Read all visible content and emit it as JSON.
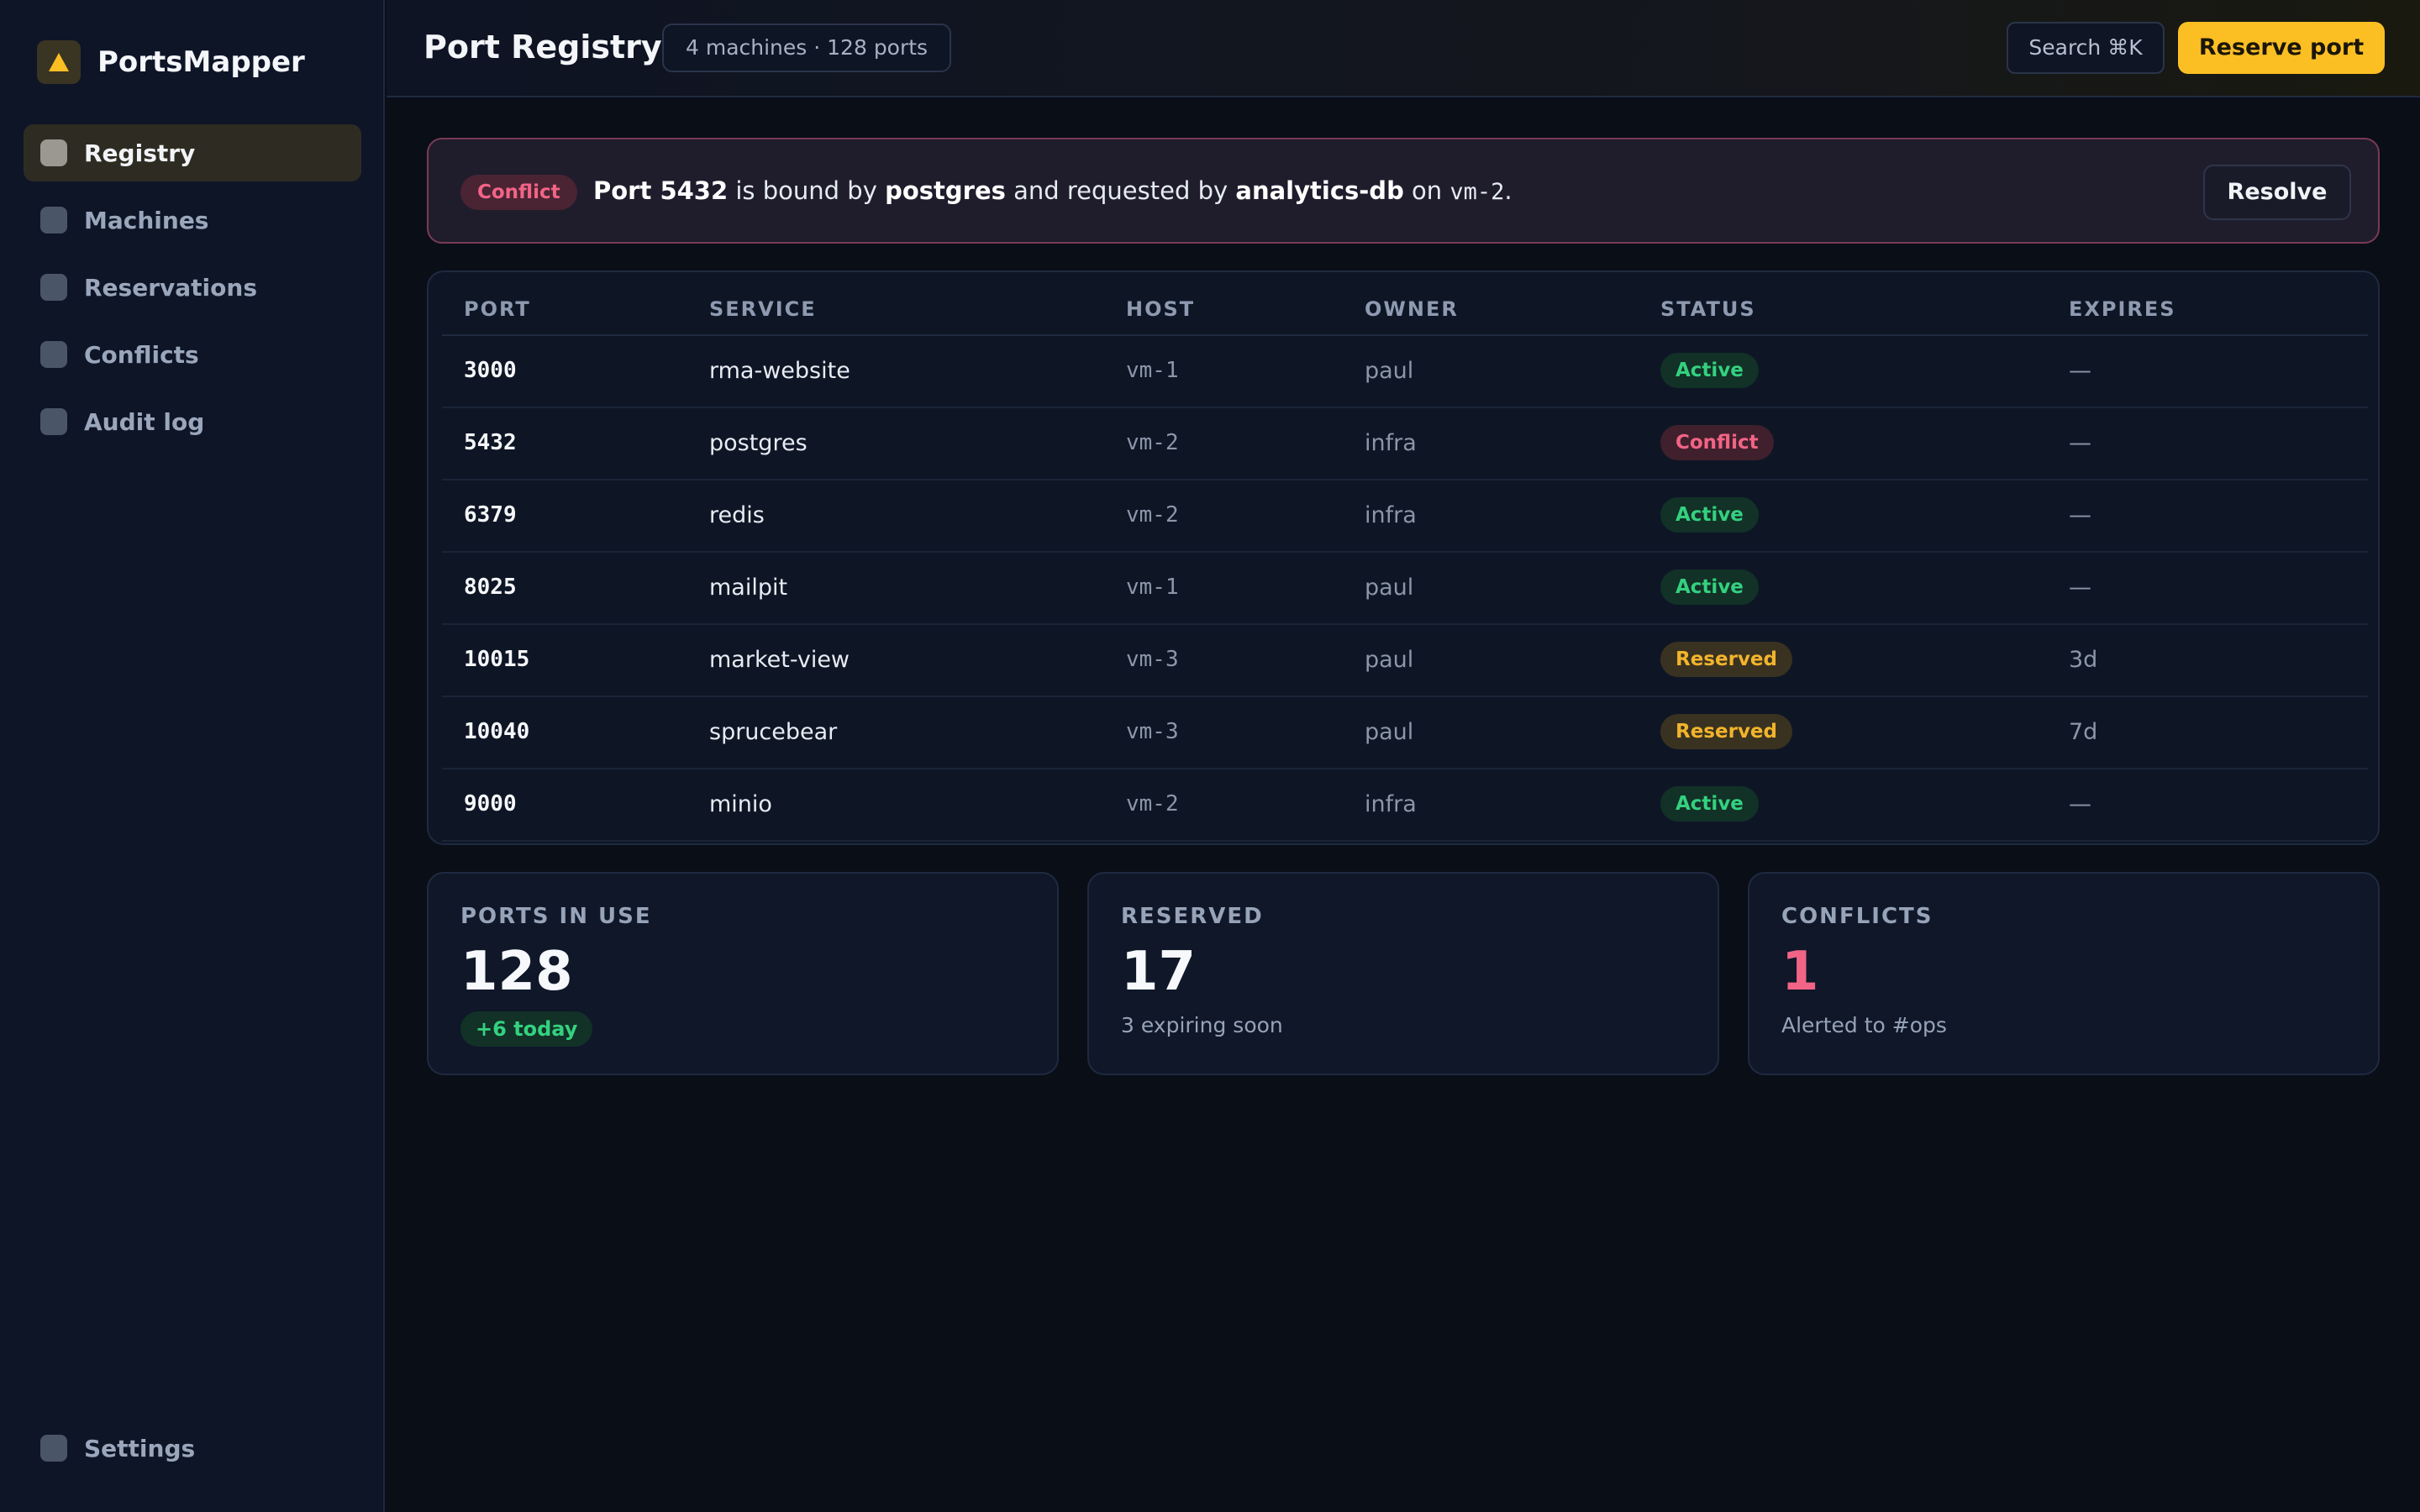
{
  "app": {
    "name": "PortsMapper",
    "logo_icon": "warning-triangle-icon",
    "accent": "#fbbf24"
  },
  "sidebar": {
    "items": [
      {
        "label": "Registry",
        "active": true
      },
      {
        "label": "Machines",
        "active": false
      },
      {
        "label": "Reservations",
        "active": false
      },
      {
        "label": "Conflicts",
        "active": false
      },
      {
        "label": "Audit log",
        "active": false
      }
    ],
    "bottom": {
      "label": "Settings"
    }
  },
  "header": {
    "title": "Port Registry",
    "meta": "4 machines · 128 ports",
    "search_label": "Search ⌘K",
    "reserve_label": "Reserve port"
  },
  "banner": {
    "badge": "Conflict",
    "port": "Port 5432",
    "text1": "is bound by",
    "service": "postgres",
    "text2": "and requested by",
    "requester": "analytics-db",
    "text3": "on",
    "host": "vm-2",
    "end": ".",
    "resolve_label": "Resolve"
  },
  "table": {
    "headers": [
      "PORT",
      "SERVICE",
      "HOST",
      "OWNER",
      "STATUS",
      "EXPIRES"
    ],
    "rows": [
      {
        "port": "3000",
        "service": "rma-website",
        "host": "vm-1",
        "owner": "paul",
        "status": "Active",
        "expires": "—"
      },
      {
        "port": "5432",
        "service": "postgres",
        "host": "vm-2",
        "owner": "infra",
        "status": "Conflict",
        "expires": "—"
      },
      {
        "port": "6379",
        "service": "redis",
        "host": "vm-2",
        "owner": "infra",
        "status": "Active",
        "expires": "—"
      },
      {
        "port": "8025",
        "service": "mailpit",
        "host": "vm-1",
        "owner": "paul",
        "status": "Active",
        "expires": "—"
      },
      {
        "port": "10015",
        "service": "market-view",
        "host": "vm-3",
        "owner": "paul",
        "status": "Reserved",
        "expires": "3d"
      },
      {
        "port": "10040",
        "service": "sprucebear",
        "host": "vm-3",
        "owner": "paul",
        "status": "Reserved",
        "expires": "7d"
      },
      {
        "port": "9000",
        "service": "minio",
        "host": "vm-2",
        "owner": "infra",
        "status": "Active",
        "expires": "—"
      }
    ]
  },
  "stats": {
    "in_use": {
      "label": "PORTS IN USE",
      "value": "128",
      "chip": "+6 today"
    },
    "reserved": {
      "label": "RESERVED",
      "value": "17",
      "sub": "3 expiring soon"
    },
    "conflicts": {
      "label": "CONFLICTS",
      "value": "1",
      "sub": "Alerted to #ops"
    }
  },
  "colors": {
    "active": "#34d17f",
    "conflict": "#f26486",
    "reserved": "#f2b42c"
  }
}
